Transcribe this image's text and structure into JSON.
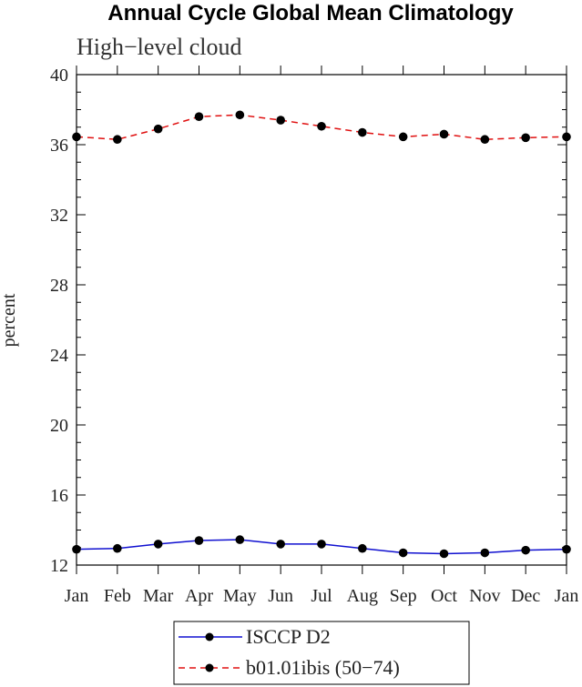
{
  "chart_data": {
    "type": "line",
    "title": "Annual Cycle Global Mean Climatology",
    "subtitle": "High−level cloud",
    "ylabel": "percent",
    "xlabel": "",
    "categories": [
      "Jan",
      "Feb",
      "Mar",
      "Apr",
      "May",
      "Jun",
      "Jul",
      "Aug",
      "Sep",
      "Oct",
      "Nov",
      "Dec",
      "Jan"
    ],
    "ylim": [
      12,
      40
    ],
    "yticks": [
      12,
      16,
      20,
      24,
      28,
      32,
      36,
      40
    ],
    "ytick_labels": [
      "12",
      "16",
      "20",
      "24",
      "28",
      "32",
      "36",
      "40"
    ],
    "grid": false,
    "legend_position": "bottom-center",
    "series": [
      {
        "name": "ISCCP D2",
        "color": "#1010d0",
        "line_style": "solid",
        "marker": "filled-circle",
        "values": [
          12.9,
          12.95,
          13.2,
          13.4,
          13.45,
          13.2,
          13.2,
          12.95,
          12.7,
          12.65,
          12.7,
          12.85,
          12.9
        ]
      },
      {
        "name": "b01.01ibis (50−74)",
        "color": "#e01010",
        "line_style": "dashed",
        "marker": "filled-circle",
        "values": [
          36.45,
          36.3,
          36.9,
          37.6,
          37.7,
          37.4,
          37.05,
          36.7,
          36.45,
          36.6,
          36.3,
          36.4,
          36.45
        ]
      }
    ]
  }
}
